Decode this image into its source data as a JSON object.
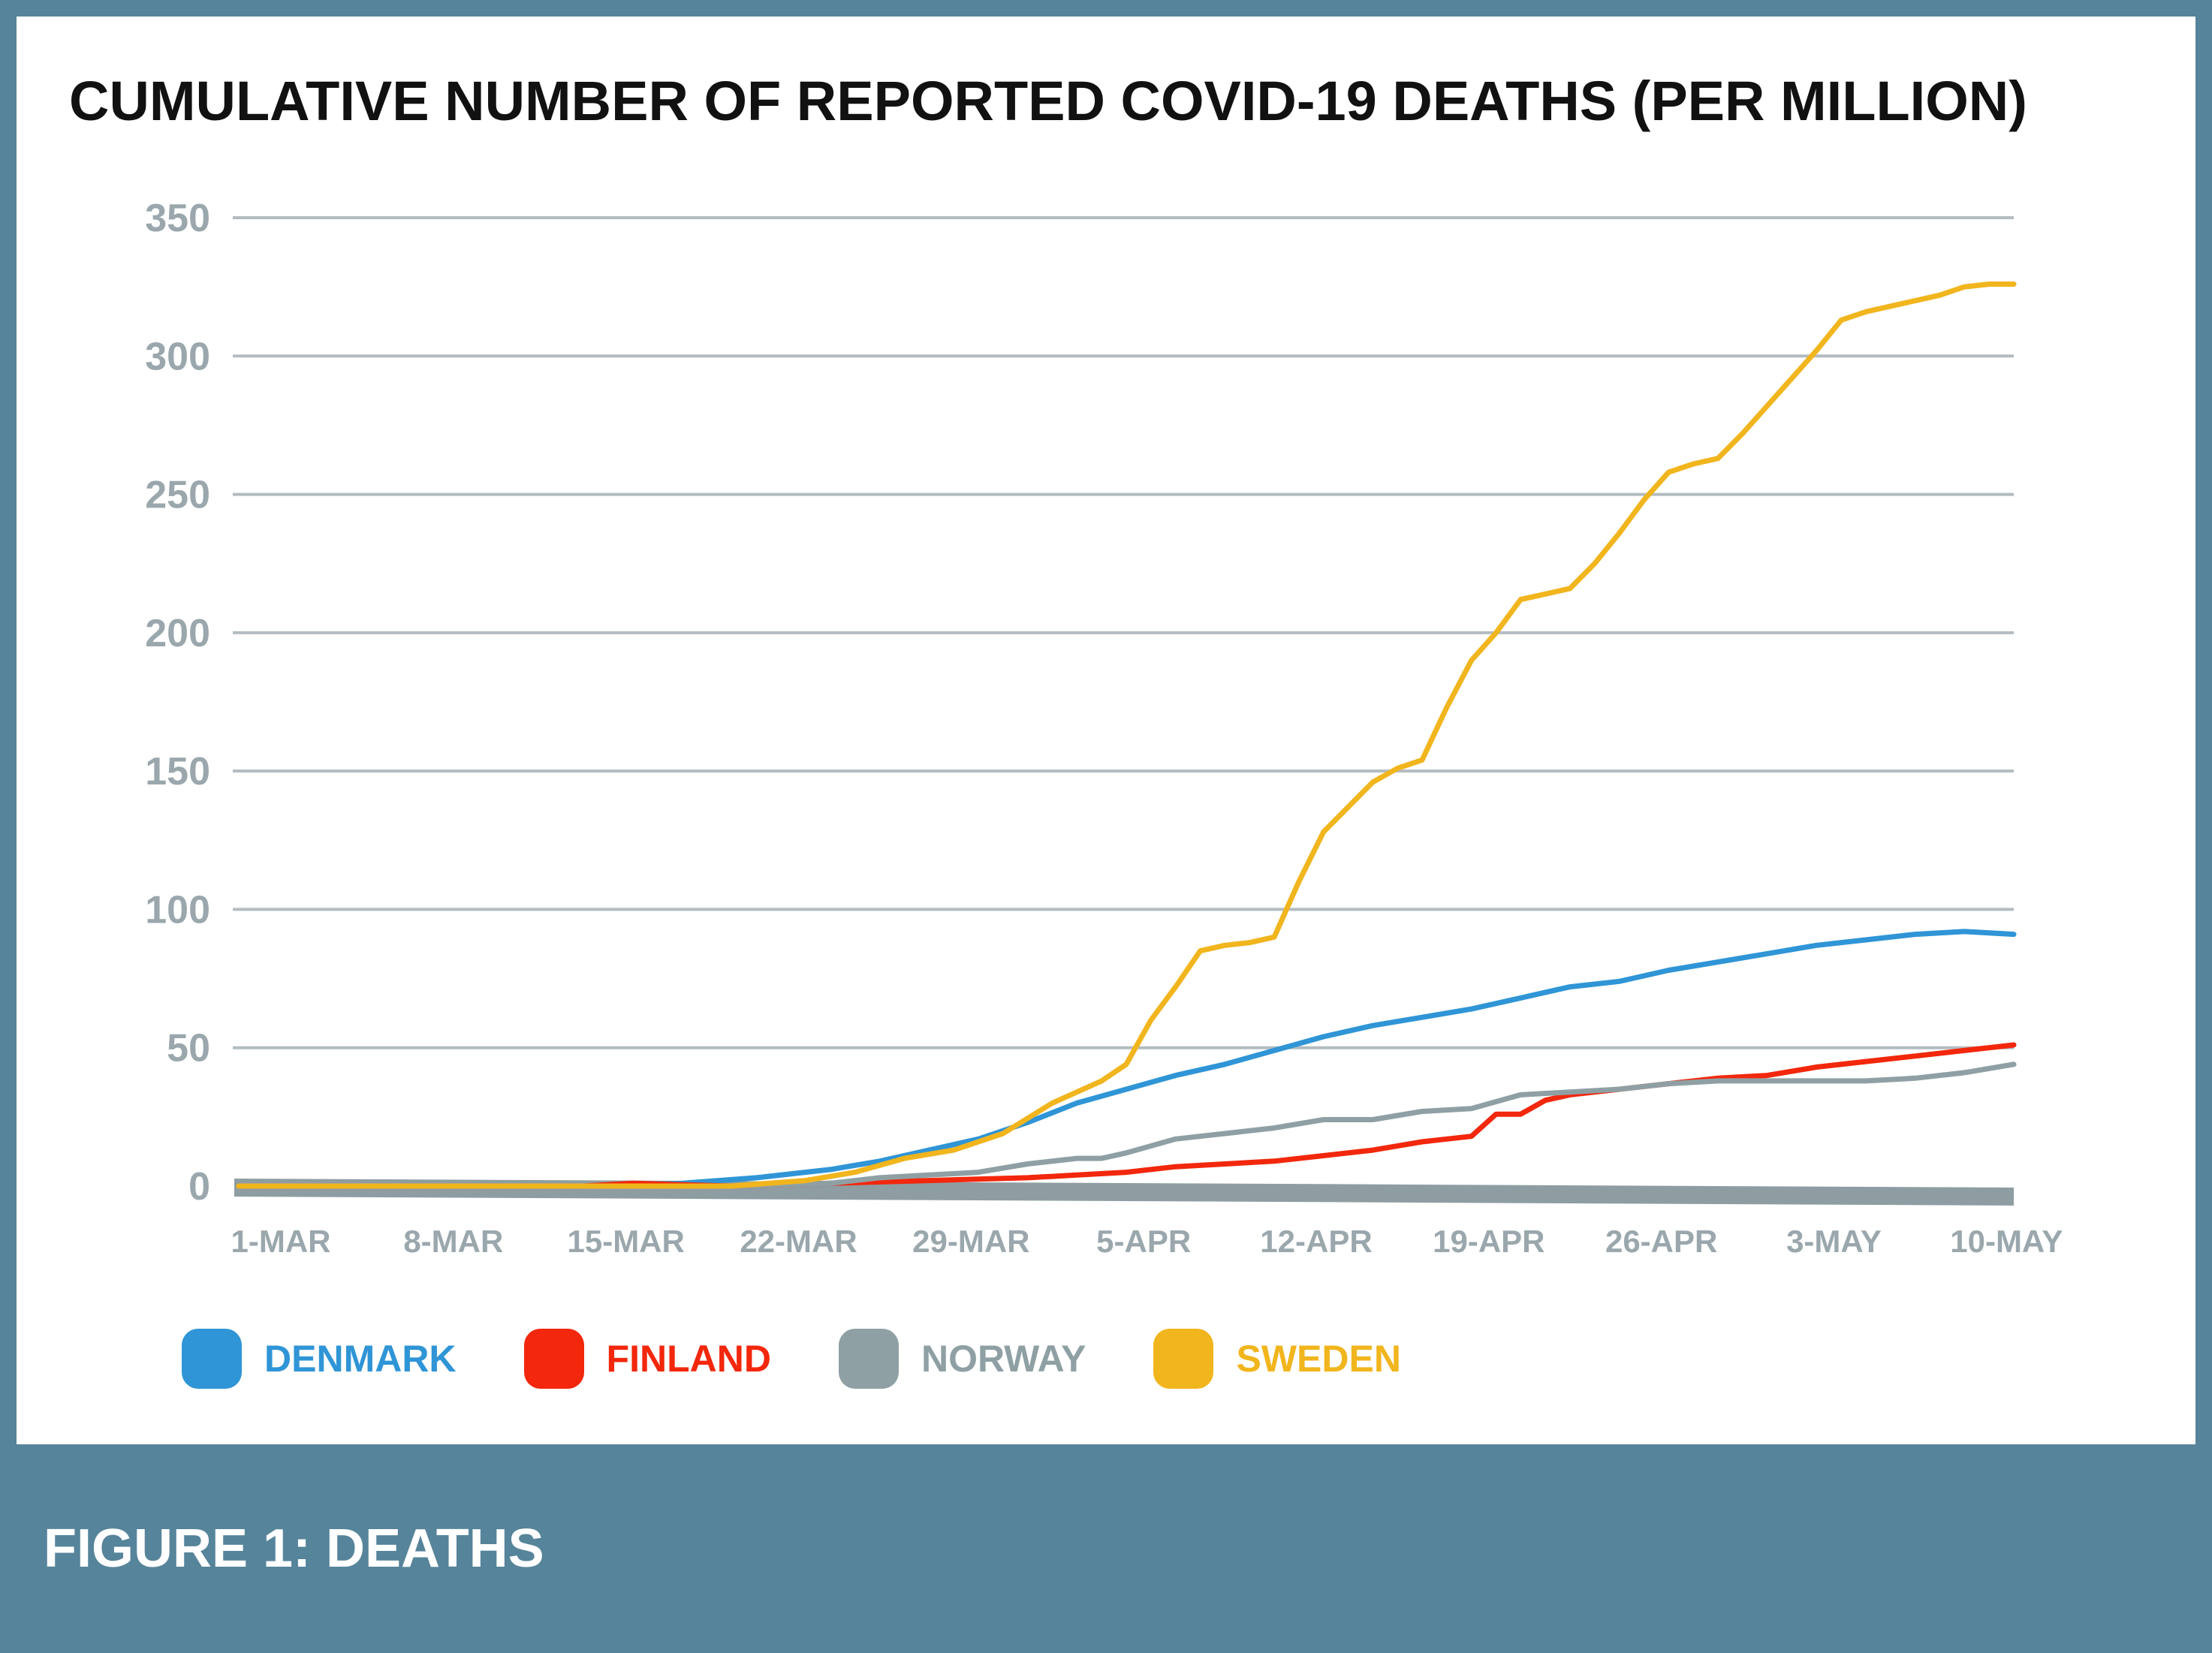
{
  "figure": {
    "caption": "FIGURE 1: DEATHS"
  },
  "colors": {
    "frame": "#56849a",
    "grid": "#b3bcc0",
    "tick_text": "#9aa7ad",
    "baseline": "#8e9da2"
  },
  "chart_data": {
    "type": "line",
    "title": "CUMULATIVE NUMBER OF REPORTED COVID-19 DEATHS (PER MILLION)",
    "xlabel": "",
    "ylabel": "",
    "ylim": [
      0,
      350
    ],
    "yticks": [
      0,
      50,
      100,
      150,
      200,
      250,
      300,
      350
    ],
    "grid": true,
    "xlim": [
      0,
      72
    ],
    "xtick_positions": [
      0,
      7,
      14,
      21,
      28,
      35,
      42,
      49,
      56,
      63,
      70
    ],
    "xtick_labels": [
      "1-MAR",
      "8-MAR",
      "15-MAR",
      "22-MAR",
      "29-MAR",
      "5-APR",
      "12-APR",
      "19-APR",
      "26-APR",
      "3-MAY",
      "10-MAY"
    ],
    "series": [
      {
        "name": "DENMARK",
        "color": "#2f95d6",
        "x": [
          0,
          14,
          18,
          21,
          24,
          26,
          28,
          30,
          32,
          34,
          36,
          38,
          40,
          42,
          44,
          46,
          48,
          50,
          52,
          54,
          56,
          58,
          60,
          62,
          64,
          66,
          68,
          70,
          72
        ],
        "y": [
          0,
          0,
          1,
          3,
          6,
          9,
          13,
          17,
          23,
          30,
          35,
          40,
          44,
          49,
          54,
          58,
          61,
          64,
          68,
          72,
          74,
          78,
          81,
          84,
          87,
          89,
          91,
          92,
          91
        ]
      },
      {
        "name": "FINLAND",
        "color": "#f2270c",
        "x": [
          0,
          14,
          16,
          20,
          24,
          28,
          32,
          34,
          36,
          38,
          40,
          42,
          44,
          46,
          48,
          50,
          51,
          52,
          53,
          54,
          56,
          58,
          60,
          62,
          64,
          66,
          68,
          70,
          72
        ],
        "y": [
          0,
          0,
          1,
          0,
          1,
          2,
          3,
          4,
          5,
          7,
          8,
          9,
          11,
          13,
          16,
          18,
          26,
          26,
          31,
          33,
          35,
          37,
          39,
          40,
          43,
          45,
          47,
          49,
          51
        ]
      },
      {
        "name": "NORWAY",
        "color": "#8fa0a4",
        "x": [
          0,
          20,
          24,
          26,
          28,
          30,
          32,
          34,
          35,
          36,
          38,
          40,
          42,
          44,
          46,
          48,
          50,
          52,
          54,
          56,
          58,
          60,
          62,
          64,
          66,
          68,
          70,
          72
        ],
        "y": [
          0,
          0,
          1,
          3,
          4,
          5,
          8,
          10,
          10,
          12,
          17,
          19,
          21,
          24,
          24,
          27,
          28,
          33,
          34,
          35,
          37,
          38,
          38,
          38,
          38,
          39,
          41,
          44
        ]
      },
      {
        "name": "SWEDEN",
        "color": "#f1b51d",
        "x": [
          0,
          20,
          23,
          25,
          27,
          29,
          31,
          33,
          35,
          36,
          37,
          38,
          39,
          40,
          41,
          42,
          43,
          44,
          45,
          46,
          47,
          48,
          49,
          50,
          51,
          52,
          53,
          54,
          55,
          56,
          57,
          58,
          59,
          60,
          61,
          62,
          63,
          64,
          65,
          66,
          67,
          68,
          69,
          70,
          71,
          72
        ],
        "y": [
          0,
          0,
          2,
          5,
          10,
          13,
          19,
          30,
          38,
          44,
          60,
          72,
          85,
          87,
          88,
          90,
          110,
          128,
          137,
          146,
          151,
          154,
          173,
          190,
          200,
          212,
          214,
          216,
          225,
          236,
          248,
          258,
          261,
          263,
          272,
          282,
          292,
          302,
          313,
          316,
          318,
          320,
          322,
          325,
          326,
          326
        ]
      }
    ],
    "legend_placement": "bottom-left"
  }
}
